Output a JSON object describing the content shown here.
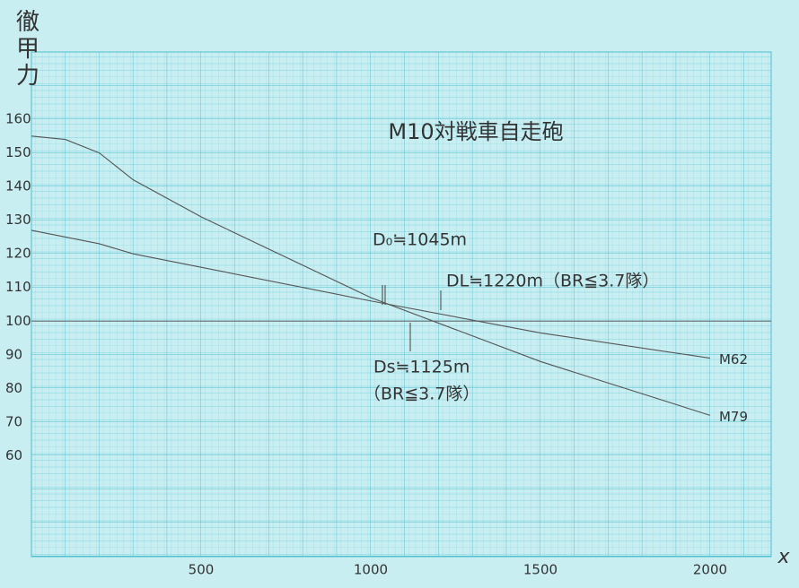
{
  "chart_data": {
    "type": "line",
    "title": "M10対戦車自走砲",
    "y_label": "徹甲力",
    "x_label": "x",
    "x": [
      0,
      100,
      200,
      300,
      500,
      1000,
      1500,
      2000
    ],
    "series": [
      {
        "name": "M62",
        "color": "#555555",
        "values": [
          127,
          125,
          123,
          120,
          116,
          106,
          96.5,
          89
        ]
      },
      {
        "name": "M79",
        "color": "#555555",
        "values": [
          155,
          154,
          150,
          142,
          131,
          107,
          88,
          72
        ]
      }
    ],
    "hline": 100,
    "xlim": [
      0,
      2180
    ],
    "ylim": [
      30,
      180
    ],
    "xticks": [
      500,
      1000,
      1500,
      2000
    ],
    "yticks": [
      60,
      70,
      80,
      90,
      100,
      110,
      120,
      130,
      140,
      150,
      160
    ],
    "annotations": [
      "D₀≒1045m",
      "DL≒1220m（BR≦3.7隊）",
      "Ds≒1125m",
      "（BR≦3.7隊）"
    ]
  }
}
